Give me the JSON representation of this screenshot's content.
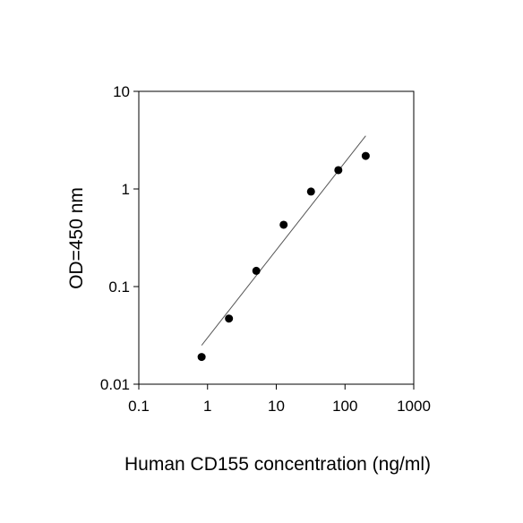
{
  "chart_data": {
    "type": "scatter",
    "x_label": "Human CD155 concentration (ng/ml)",
    "y_label": "OD=450 nm",
    "xscale": "log",
    "yscale": "log",
    "xlim": [
      0.1,
      1000
    ],
    "ylim": [
      0.01,
      10
    ],
    "xticks": [
      0.1,
      1,
      10,
      100,
      1000
    ],
    "yticks": [
      0.01,
      0.1,
      1,
      10
    ],
    "color": "#000000",
    "x": [
      0.82,
      2.05,
      5.12,
      12.8,
      32,
      80,
      200
    ],
    "values": [
      0.019,
      0.047,
      0.145,
      0.43,
      0.94,
      1.56,
      2.18
    ],
    "fit": {
      "x": [
        0.82,
        200
      ],
      "values": [
        0.025,
        3.5
      ],
      "color": "#555555"
    }
  }
}
